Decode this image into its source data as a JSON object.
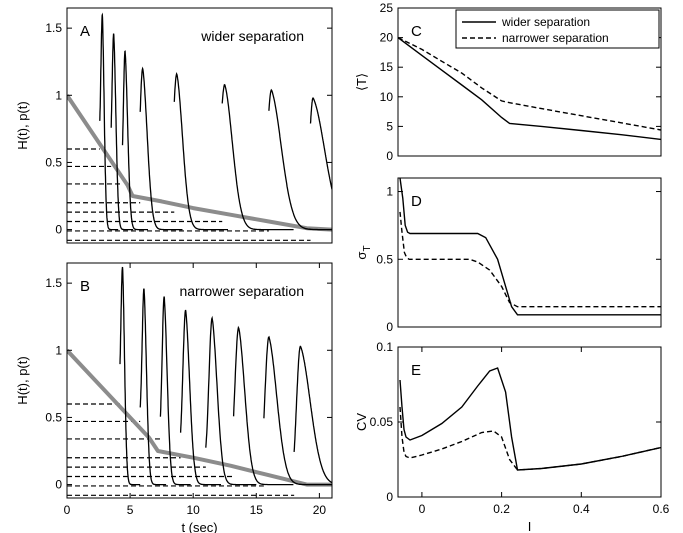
{
  "chart_data": [
    {
      "panel": "A",
      "type": "line",
      "annotation": "wider separation",
      "xlabel": "",
      "ylabel": "H(t), p(t)",
      "xlim": [
        0,
        21
      ],
      "ylim": [
        -0.1,
        1.65
      ],
      "xticks": [],
      "yticks": [
        {
          "v": 0,
          "t": "0"
        },
        {
          "v": 0.5,
          "t": "0.5"
        },
        {
          "v": 1,
          "t": "1"
        },
        {
          "v": 1.5,
          "t": "1.5"
        }
      ],
      "threshold_curve": {
        "color": "#8c8c8c",
        "x": [
          0,
          4.8,
          5.2,
          7.5,
          10,
          13,
          16,
          19,
          21
        ],
        "y": [
          1.0,
          0.33,
          0.25,
          0.21,
          0.16,
          0.11,
          0.06,
          0.01,
          0.0
        ]
      },
      "levels": [
        {
          "h": 0.6,
          "x_end": 2.6
        },
        {
          "h": 0.47,
          "x_end": 3.5
        },
        {
          "h": 0.34,
          "x_end": 4.4
        },
        {
          "h": 0.2,
          "x_end": 5.8
        },
        {
          "h": 0.13,
          "x_end": 8.5
        },
        {
          "h": 0.06,
          "x_end": 12.3
        },
        {
          "h": -0.01,
          "x_end": 16.0
        },
        {
          "h": -0.08,
          "x_end": 19.3
        }
      ],
      "peaks": [
        {
          "t": 2.8,
          "height": 1.6,
          "rise": 0.16,
          "decay": 0.18
        },
        {
          "t": 3.7,
          "height": 1.46,
          "rise": 0.18,
          "decay": 0.22
        },
        {
          "t": 4.6,
          "height": 1.33,
          "rise": 0.18,
          "decay": 0.26
        },
        {
          "t": 6.0,
          "height": 1.2,
          "rise": 0.32,
          "decay": 0.45
        },
        {
          "t": 8.7,
          "height": 1.16,
          "rise": 0.42,
          "decay": 0.58
        },
        {
          "t": 12.5,
          "height": 1.08,
          "rise": 0.52,
          "decay": 0.78
        },
        {
          "t": 16.2,
          "height": 1.04,
          "rise": 0.5,
          "decay": 1.0
        },
        {
          "t": 19.5,
          "height": 0.98,
          "rise": 0.45,
          "decay": 1.2
        }
      ]
    },
    {
      "panel": "B",
      "type": "line",
      "annotation": "narrower separation",
      "xlabel": "t (sec)",
      "ylabel": "H(t), p(t)",
      "xlim": [
        0,
        21
      ],
      "ylim": [
        -0.1,
        1.65
      ],
      "xticks": [
        {
          "v": 0,
          "t": "0"
        },
        {
          "v": 5,
          "t": "5"
        },
        {
          "v": 10,
          "t": "10"
        },
        {
          "v": 15,
          "t": "15"
        },
        {
          "v": 20,
          "t": "20"
        }
      ],
      "yticks": [
        {
          "v": 0,
          "t": "0"
        },
        {
          "v": 0.5,
          "t": "0.5"
        },
        {
          "v": 1,
          "t": "1"
        },
        {
          "v": 1.5,
          "t": "1.5"
        }
      ],
      "threshold_curve": {
        "color": "#8c8c8c",
        "x": [
          0,
          6.5,
          7.2,
          10,
          13,
          16,
          19,
          21
        ],
        "y": [
          1.0,
          0.35,
          0.25,
          0.2,
          0.14,
          0.07,
          0.0,
          0.0
        ]
      },
      "levels": [
        {
          "h": 0.6,
          "x_end": 4.2
        },
        {
          "h": 0.47,
          "x_end": 5.8
        },
        {
          "h": 0.34,
          "x_end": 7.4
        },
        {
          "h": 0.2,
          "x_end": 9.0
        },
        {
          "h": 0.13,
          "x_end": 11.0
        },
        {
          "h": 0.06,
          "x_end": 13.2
        },
        {
          "h": -0.01,
          "x_end": 15.6
        },
        {
          "h": -0.08,
          "x_end": 18.0
        }
      ],
      "peaks": [
        {
          "t": 4.4,
          "height": 1.62,
          "rise": 0.18,
          "decay": 0.2
        },
        {
          "t": 6.1,
          "height": 1.46,
          "rise": 0.2,
          "decay": 0.25
        },
        {
          "t": 7.7,
          "height": 1.4,
          "rise": 0.22,
          "decay": 0.3
        },
        {
          "t": 9.4,
          "height": 1.3,
          "rise": 0.3,
          "decay": 0.4
        },
        {
          "t": 11.5,
          "height": 1.24,
          "rise": 0.35,
          "decay": 0.5
        },
        {
          "t": 13.6,
          "height": 1.17,
          "rise": 0.42,
          "decay": 0.62
        },
        {
          "t": 16.0,
          "height": 1.1,
          "rise": 0.45,
          "decay": 0.8
        },
        {
          "t": 18.5,
          "height": 1.03,
          "rise": 0.45,
          "decay": 1.0
        }
      ]
    },
    {
      "panel": "C",
      "type": "line",
      "xlabel": "",
      "ylabel": "⟨T⟩",
      "xlim": [
        -0.06,
        0.6
      ],
      "ylim": [
        0,
        25
      ],
      "xticks": [],
      "yticks": [
        {
          "v": 0,
          "t": "0"
        },
        {
          "v": 5,
          "t": "5"
        },
        {
          "v": 10,
          "t": "10"
        },
        {
          "v": 15,
          "t": "15"
        },
        {
          "v": 20,
          "t": "20"
        },
        {
          "v": 25,
          "t": "25"
        }
      ],
      "legend": [
        "wider separation",
        "narrower separation"
      ],
      "series": [
        {
          "name": "wider separation",
          "dash": "solid",
          "x": [
            -0.06,
            0.0,
            0.05,
            0.1,
            0.15,
            0.2,
            0.22,
            0.3,
            0.4,
            0.5,
            0.6
          ],
          "y": [
            20,
            17,
            14.5,
            12,
            9.5,
            6.5,
            5.5,
            5,
            4.3,
            3.6,
            2.8
          ]
        },
        {
          "name": "narrower separation",
          "dash": "dashed",
          "x": [
            -0.06,
            0.0,
            0.05,
            0.1,
            0.15,
            0.2,
            0.22,
            0.3,
            0.4,
            0.5,
            0.6
          ],
          "y": [
            20,
            18,
            16,
            14,
            11.5,
            9.3,
            9,
            8,
            6.8,
            5.6,
            4.4
          ]
        }
      ]
    },
    {
      "panel": "D",
      "type": "line",
      "xlabel": "",
      "ylabel": "σ_T",
      "xlim": [
        -0.06,
        0.6
      ],
      "ylim": [
        0,
        1.1
      ],
      "xticks": [],
      "yticks": [
        {
          "v": 0,
          "t": "0"
        },
        {
          "v": 0.5,
          "t": "0.5"
        },
        {
          "v": 1,
          "t": "1"
        }
      ],
      "series": [
        {
          "name": "wider separation",
          "dash": "solid",
          "x": [
            -0.055,
            -0.048,
            -0.042,
            -0.036,
            -0.03,
            0.14,
            0.16,
            0.19,
            0.21,
            0.225,
            0.24,
            0.25,
            0.6
          ],
          "y": [
            1.1,
            0.95,
            0.75,
            0.7,
            0.69,
            0.69,
            0.66,
            0.5,
            0.3,
            0.15,
            0.09,
            0.09,
            0.09
          ]
        },
        {
          "name": "narrower separation",
          "dash": "dashed",
          "x": [
            -0.055,
            -0.05,
            -0.044,
            -0.038,
            -0.032,
            0.12,
            0.14,
            0.17,
            0.2,
            0.22,
            0.24,
            0.6
          ],
          "y": [
            0.85,
            0.7,
            0.55,
            0.51,
            0.5,
            0.5,
            0.48,
            0.42,
            0.3,
            0.18,
            0.15,
            0.15
          ]
        }
      ]
    },
    {
      "panel": "E",
      "type": "line",
      "xlabel": "I",
      "ylabel": "CV",
      "xlim": [
        -0.06,
        0.6
      ],
      "ylim": [
        0,
        0.1
      ],
      "xticks": [
        {
          "v": 0,
          "t": "0"
        },
        {
          "v": 0.2,
          "t": "0.2"
        },
        {
          "v": 0.4,
          "t": "0.4"
        },
        {
          "v": 0.6,
          "t": "0.6"
        }
      ],
      "yticks": [
        {
          "v": 0,
          "t": "0"
        },
        {
          "v": 0.05,
          "t": "0.05"
        },
        {
          "v": 0.1,
          "t": "0.1"
        }
      ],
      "series": [
        {
          "name": "wider separation",
          "dash": "solid",
          "x": [
            -0.055,
            -0.05,
            -0.045,
            -0.04,
            -0.03,
            0.0,
            0.05,
            0.1,
            0.14,
            0.17,
            0.19,
            0.21,
            0.225,
            0.24,
            0.3,
            0.4,
            0.5,
            0.6
          ],
          "y": [
            0.078,
            0.06,
            0.045,
            0.04,
            0.038,
            0.041,
            0.049,
            0.06,
            0.074,
            0.084,
            0.086,
            0.07,
            0.04,
            0.018,
            0.019,
            0.022,
            0.027,
            0.033
          ]
        },
        {
          "name": "narrower separation",
          "dash": "dashed",
          "x": [
            -0.055,
            -0.05,
            -0.045,
            -0.04,
            -0.03,
            0.0,
            0.05,
            0.1,
            0.15,
            0.18,
            0.2,
            0.22,
            0.24,
            0.3,
            0.4,
            0.5,
            0.6
          ],
          "y": [
            0.06,
            0.04,
            0.03,
            0.027,
            0.026,
            0.028,
            0.032,
            0.037,
            0.043,
            0.044,
            0.04,
            0.025,
            0.018,
            0.019,
            0.022,
            0.027,
            0.033
          ]
        }
      ]
    }
  ]
}
